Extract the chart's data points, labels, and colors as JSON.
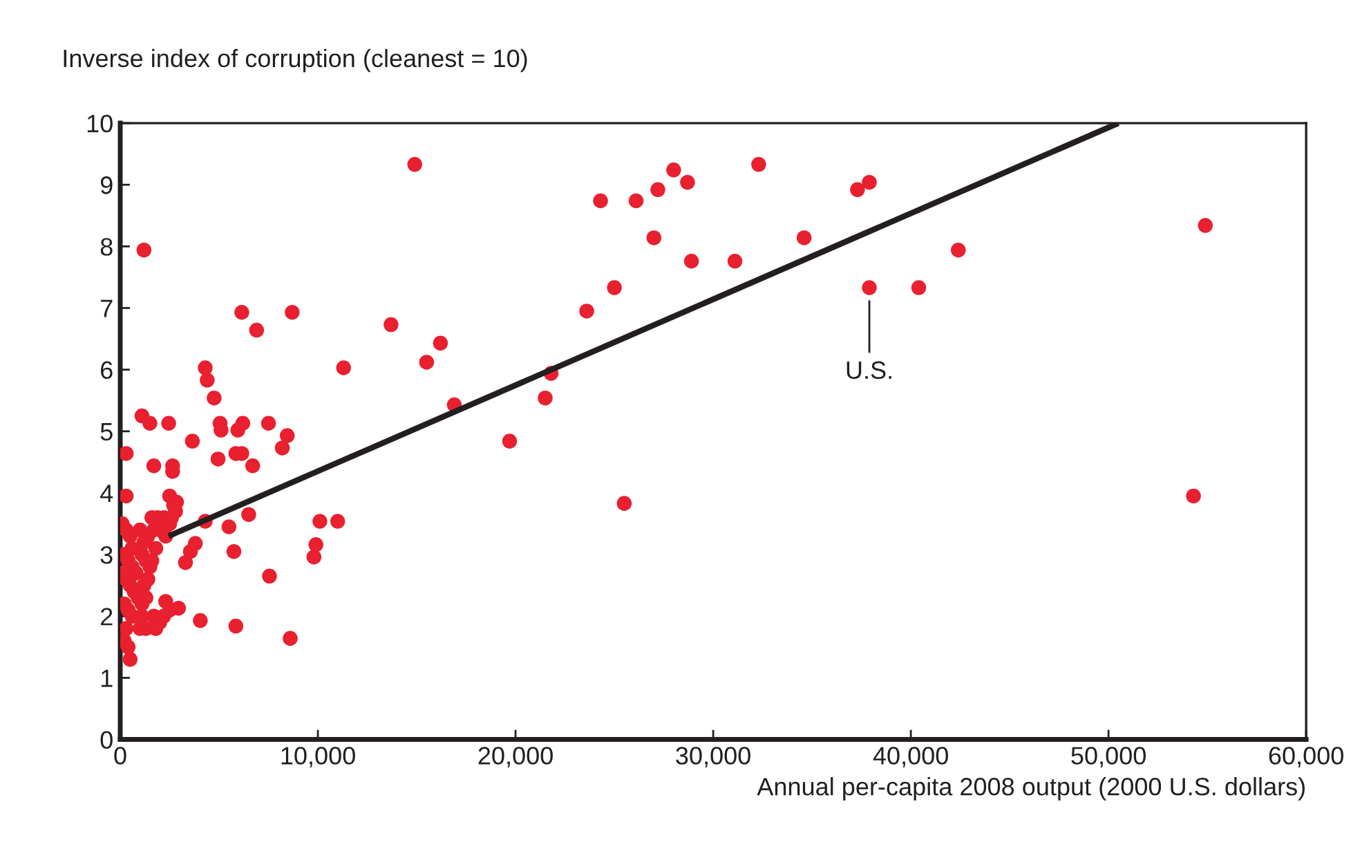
{
  "chart_data": {
    "type": "scatter",
    "xlabel": "Annual per-capita 2008 output (2000 U.S. dollars)",
    "ylabel": "Inverse index of corruption (cleanest = 10)",
    "xlim": [
      0,
      60000
    ],
    "ylim": [
      0,
      10
    ],
    "xticks": [
      0,
      {
        "value": 10000,
        "label": "10,000"
      },
      {
        "value": 20000,
        "label": "20,000"
      },
      {
        "value": 30000,
        "label": "30,000"
      },
      {
        "value": 40000,
        "label": "40,000"
      },
      {
        "value": 50000,
        "label": "50,000"
      },
      {
        "value": 60000,
        "label": "60,000"
      }
    ],
    "yticks": [
      0,
      1,
      2,
      3,
      4,
      5,
      6,
      7,
      8,
      9,
      10
    ],
    "grid": false,
    "series": [
      {
        "marker": "circle",
        "color": "#e8202f",
        "x": [
          14900,
          24300,
          26100,
          27200,
          28000,
          28700,
          27000,
          28900,
          31100,
          32300,
          34600,
          37300,
          37900,
          37900,
          40400,
          42400,
          54900,
          54300,
          25500,
          23600,
          25000,
          13700,
          16200,
          15500,
          16900,
          19700,
          21500,
          21800,
          1200,
          6150,
          8700,
          6900,
          4300,
          4400,
          4750,
          11300,
          1100,
          1500,
          2450,
          5050,
          5100,
          5950,
          6200,
          7500,
          8450,
          8200,
          3650,
          300,
          1700,
          2650,
          2650,
          4950,
          5850,
          6150,
          6700,
          300,
          2500,
          2850,
          4300,
          5500,
          6500,
          5750,
          3800,
          3550,
          3300,
          7550,
          10100,
          11000,
          9900,
          9800,
          2300,
          2950,
          4050,
          5850,
          8600,
          100,
          300,
          500,
          1100,
          1300,
          1500,
          200,
          400,
          600,
          800,
          1200,
          300,
          500,
          700,
          900,
          1100,
          200,
          400,
          600,
          1000,
          300,
          200,
          400,
          500,
          100,
          1400,
          1600,
          1900,
          2200,
          2500,
          2800,
          2000,
          2300,
          1800,
          1600,
          1400,
          1700,
          2000,
          1300,
          1700,
          2700,
          2600,
          1000,
          1200,
          600,
          1100,
          1300,
          2200,
          2500,
          1800
        ],
        "values": [
          9.33,
          8.74,
          8.74,
          8.92,
          9.24,
          9.04,
          8.14,
          7.76,
          7.76,
          9.33,
          8.14,
          8.92,
          9.04,
          7.33,
          7.33,
          7.94,
          8.34,
          3.95,
          3.83,
          6.95,
          7.33,
          6.73,
          6.43,
          6.12,
          5.43,
          4.84,
          5.54,
          5.94,
          7.94,
          6.93,
          6.93,
          6.64,
          6.03,
          5.83,
          5.54,
          6.03,
          5.25,
          5.13,
          5.13,
          5.13,
          5.02,
          5.02,
          5.13,
          5.13,
          4.93,
          4.73,
          4.84,
          4.64,
          4.44,
          4.44,
          4.35,
          4.55,
          4.64,
          4.64,
          4.44,
          3.95,
          3.95,
          3.85,
          3.54,
          3.45,
          3.65,
          3.05,
          3.18,
          3.05,
          2.87,
          2.65,
          3.54,
          3.54,
          3.16,
          2.96,
          2.24,
          2.13,
          1.93,
          1.84,
          1.64,
          3.5,
          3.4,
          3.3,
          3.0,
          2.9,
          2.8,
          3.0,
          2.9,
          2.8,
          2.7,
          2.5,
          2.6,
          2.5,
          2.4,
          2.3,
          2.2,
          2.2,
          2.1,
          2.0,
          1.8,
          1.8,
          1.6,
          1.5,
          1.3,
          2.7,
          3.3,
          3.6,
          3.6,
          3.6,
          3.5,
          3.7,
          3.4,
          3.3,
          3.1,
          2.9,
          2.6,
          2.0,
          1.9,
          2.3,
          3.4,
          3.8,
          3.6,
          3.4,
          3.2,
          3.1,
          2.0,
          1.8,
          2.0,
          2.1,
          1.8
        ]
      },
      {
        "type": "line",
        "color": "#231f20",
        "x": [
          2450,
          50500
        ],
        "values": [
          3.3,
          10
        ]
      }
    ],
    "annotations": [
      {
        "text": "U.S.",
        "x": 37900,
        "y": 7.33
      }
    ]
  }
}
